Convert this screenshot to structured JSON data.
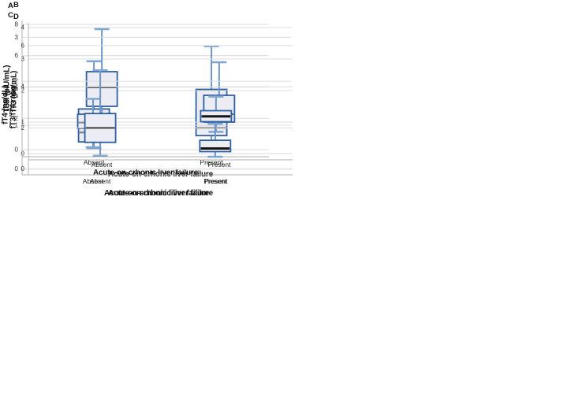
{
  "figure": {
    "background": "#ffffff",
    "xlabel": "Acute-on-crhonic liver failure",
    "categories": [
      "Absent",
      "Present"
    ]
  },
  "colors": {
    "box_border": "#2f5f9f",
    "box_fill": "#ebecf4",
    "whisker": "#6e95c5",
    "whisker_cap": "#7ea6d2",
    "gridline": "#dcdcdc",
    "axis": "#b3b3b3",
    "tick_text": "#333333",
    "label_text": "#111111"
  },
  "chart_data": [
    {
      "type": "box",
      "panel": "A",
      "ylabel": "TSH (µIU/mL)",
      "xlabel": "Acute-on-crhonic liver failure",
      "categories": [
        "Absent",
        "Present"
      ],
      "yticks": [
        0,
        2,
        4,
        6,
        8
      ],
      "ylim": [
        -0.45,
        8.25
      ],
      "grid": true,
      "series": [
        {
          "name": "Absent",
          "min": 0.1,
          "q1": 0.5,
          "median": 1.1,
          "q3": 2.6,
          "max": 5.65,
          "median_color": "#8a8a8a",
          "median_weight": 2.5
        },
        {
          "name": "Present",
          "min": 0.2,
          "q1": 0.9,
          "median": 1.4,
          "q3": 3.85,
          "max": 6.6,
          "median_color": "#8a8a8a",
          "median_weight": 2.5
        }
      ]
    },
    {
      "type": "box",
      "panel": "B",
      "ylabel": "fT3 (pg/mL)",
      "xlabel": "Acute-on-crhonic liver failure",
      "categories": [
        "Absent",
        "Present"
      ],
      "yticks": [
        0,
        1,
        2,
        3,
        4
      ],
      "ylim": [
        -0.2,
        4.15
      ],
      "grid": true,
      "series": [
        {
          "name": "Absent",
          "min": 1.0,
          "q1": 1.5,
          "median": 2.1,
          "q3": 2.6,
          "max": 3.95,
          "median_color": "#2f2f2f",
          "median_weight": 1.6
        },
        {
          "name": "Present",
          "min": 1.0,
          "q1": 1.0,
          "median": 1.25,
          "q3": 1.85,
          "max": 2.9,
          "median_color": "#2f2f2f",
          "median_weight": 1.6
        }
      ]
    },
    {
      "type": "box",
      "panel": "C",
      "ylabel": "fT4 (ng/dL)",
      "xlabel": "Acute-on-crhonic liver failure",
      "categories": [
        "Absent",
        "Present"
      ],
      "yticks": [
        0,
        1,
        2,
        3
      ],
      "ylim": [
        -0.13,
        3.06
      ],
      "grid": true,
      "series": [
        {
          "name": "Absent",
          "min": 0.5,
          "q1": 0.93,
          "median": 1.06,
          "q3": 1.25,
          "max": 1.6,
          "median_color": "#8a8a8a",
          "median_weight": 2
        },
        {
          "name": "Present",
          "min": 0.85,
          "q1": 1.08,
          "median": 1.2,
          "q3": 1.33,
          "max": 1.65,
          "median_color": "#151515",
          "median_weight": 3
        }
      ]
    },
    {
      "type": "box",
      "panel": "D",
      "ylabel": "fT3/fT4 ratio",
      "xlabel": "Acute-on-crhonic liver failure",
      "categories": [
        "Absent",
        "Present"
      ],
      "yticks": [
        0,
        2,
        4,
        6
      ],
      "ylim": [
        -0.28,
        6.34
      ],
      "grid": true,
      "series": [
        {
          "name": "Absent",
          "min": 0.65,
          "q1": 1.3,
          "median": 2.0,
          "q3": 2.7,
          "max": 4.8,
          "median_color": "#3c3c3c",
          "median_weight": 2
        },
        {
          "name": "Present",
          "min": 0.6,
          "q1": 0.85,
          "median": 1.0,
          "q3": 1.4,
          "max": 2.2,
          "median_color": "#151515",
          "median_weight": 3
        }
      ]
    }
  ]
}
